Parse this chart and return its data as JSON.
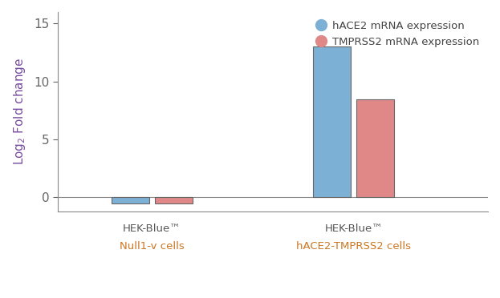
{
  "groups": [
    "HEK-Blue™\nNull1-v cells",
    "HEK-Blue™\nhACE2-TMPRSS2 cells"
  ],
  "hACE2_values": [
    -0.5,
    13.0
  ],
  "TMPRSS2_values": [
    -0.5,
    8.5
  ],
  "bar_color_blue": "#7db0d5",
  "bar_color_red": "#e08888",
  "bar_edge_color": "#666666",
  "ylabel": "Log$_2$ Fold change",
  "ylim": [
    -1.2,
    16
  ],
  "yticks": [
    0,
    5,
    10,
    15
  ],
  "legend_label_blue": "hACE2 mRNA expression",
  "legend_label_red": "TMPRSS2 mRNA expression",
  "bar_width": 0.28,
  "group_centers": [
    1.0,
    2.5
  ],
  "group_label_color_line1": "#555555",
  "group_label_color_line2": "#cc7722",
  "background_color": "#ffffff",
  "axis_color": "#888888",
  "tick_color": "#666666",
  "ylabel_color": "#7a4fa0",
  "legend_text_color": "#444444"
}
